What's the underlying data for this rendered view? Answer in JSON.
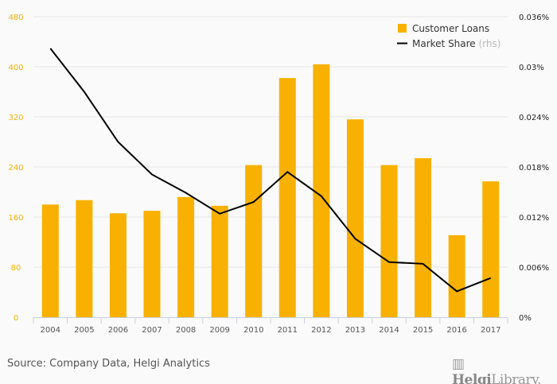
{
  "chart_data": {
    "type": "bar",
    "categories": [
      "2004",
      "2005",
      "2006",
      "2007",
      "2008",
      "2009",
      "2010",
      "2011",
      "2012",
      "2013",
      "2014",
      "2015",
      "2016",
      "2017"
    ],
    "series": [
      {
        "name": "Customer Loans",
        "type": "bar",
        "axis": "left",
        "color": "#f8b100",
        "values": [
          180,
          187,
          166,
          170,
          192,
          178,
          243,
          382,
          404,
          316,
          243,
          254,
          131,
          217
        ]
      },
      {
        "name": "Market Share",
        "suffix": "(rhs)",
        "type": "line",
        "axis": "right",
        "color": "#000000",
        "values": [
          0.0322,
          0.027,
          0.021,
          0.0171,
          0.0149,
          0.0124,
          0.0138,
          0.0174,
          0.0145,
          0.0094,
          0.0066,
          0.0064,
          0.0031,
          0.0047
        ]
      }
    ],
    "ylim_left": [
      0,
      480
    ],
    "left_ticks": [
      "0",
      "80",
      "160",
      "240",
      "320",
      "400",
      "480"
    ],
    "ylim_right": [
      0,
      0.036
    ],
    "right_ticks": [
      "0%",
      "0.006%",
      "0.012%",
      "0.018%",
      "0.024%",
      "0.03%",
      "0.036%"
    ],
    "grid": true,
    "legend": "top-right"
  },
  "footer": {
    "source": "Source: Company Data, Helgi Analytics",
    "logo_text": "HelgiLibrary"
  }
}
